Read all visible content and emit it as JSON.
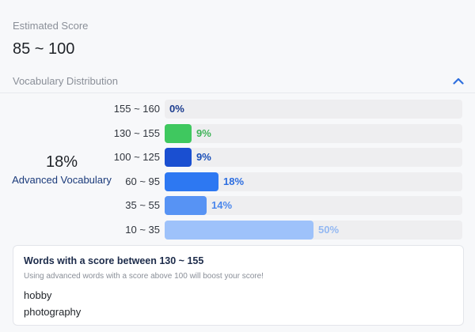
{
  "estimated": {
    "label": "Estimated Score",
    "value": "85 ~ 100"
  },
  "distribution": {
    "title": "Vocabulary Distribution",
    "collapse_icon": "chevron-up-icon",
    "accent_color": "#2f6fde",
    "summary": {
      "percent": "18%",
      "label": "Advanced Vocabulary"
    },
    "rows": [
      {
        "range": "155 ~ 160",
        "percent_label": "0%",
        "fraction": 0.0,
        "bar_color": "#1f48c4",
        "label_color": "#1a3b8e"
      },
      {
        "range": "130 ~ 155",
        "percent_label": "9%",
        "fraction": 0.09,
        "bar_color": "#3fc85f",
        "label_color": "#3fb358"
      },
      {
        "range": "100 ~ 125",
        "percent_label": "9%",
        "fraction": 0.09,
        "bar_color": "#1a4fd1",
        "label_color": "#1a4fb8"
      },
      {
        "range": "60 ~ 95",
        "percent_label": "18%",
        "fraction": 0.18,
        "bar_color": "#2d78f2",
        "label_color": "#2d6ee0"
      },
      {
        "range": "35 ~ 55",
        "percent_label": "14%",
        "fraction": 0.14,
        "bar_color": "#5793f4",
        "label_color": "#4b87ec"
      },
      {
        "range": "10 ~ 35",
        "percent_label": "50%",
        "fraction": 0.5,
        "bar_color": "#9ec2fa",
        "label_color": "#93b8f2"
      }
    ]
  },
  "info_card": {
    "title": "Words with a score between 130 ~ 155",
    "subtitle": "Using advanced words with a score above 100 will boost your score!",
    "words": [
      "hobby",
      "photography"
    ]
  }
}
